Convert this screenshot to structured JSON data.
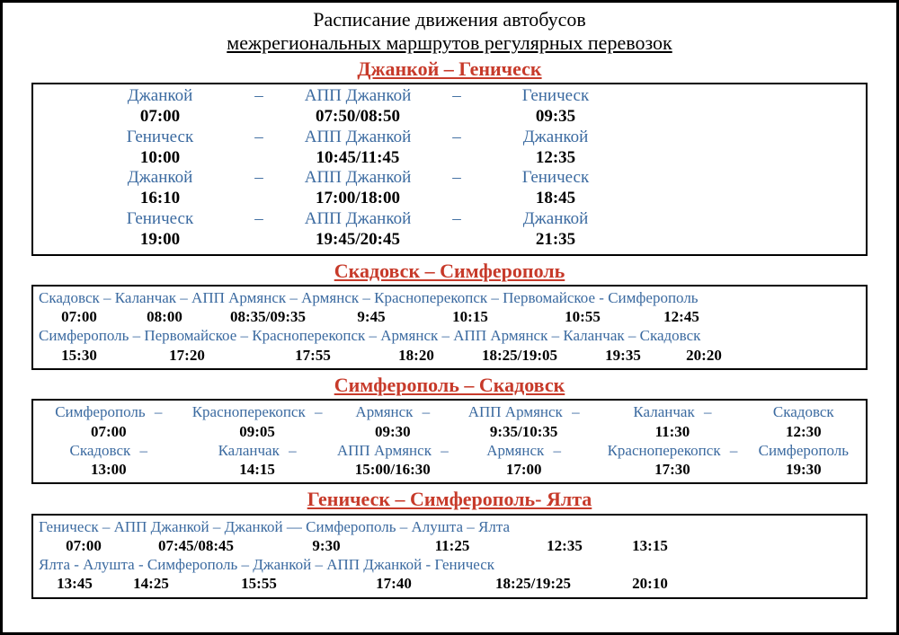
{
  "colors": {
    "route_color": "#c73a2a",
    "stop_color": "#3b6aa0",
    "sep_color": "#3b6aa0",
    "time_color": "#000000",
    "text_color": "#000000",
    "border_color": "#000000"
  },
  "title": "Расписание движения автобусов",
  "subtitle": "межрегиональных  маршрутов регулярных перевозок",
  "sections": [
    {
      "heading": "Джанкой – Геническ",
      "kind": "three-stop",
      "trips": [
        {
          "stops": [
            "Джанкой",
            "АПП Джанкой",
            "Геническ"
          ],
          "times": [
            "07:00",
            "07:50/08:50",
            "09:35"
          ]
        },
        {
          "stops": [
            "Геническ",
            "АПП Джанкой",
            "Джанкой"
          ],
          "times": [
            "10:00",
            "10:45/11:45",
            "12:35"
          ]
        },
        {
          "stops": [
            "Джанкой",
            "АПП Джанкой",
            "Геническ"
          ],
          "times": [
            "16:10",
            "17:00/18:00",
            "18:45"
          ]
        },
        {
          "stops": [
            "Геническ",
            "АПП Джанкой",
            "Джанкой"
          ],
          "times": [
            "19:00",
            "19:45/20:45",
            "21:35"
          ]
        }
      ]
    },
    {
      "heading": "Скадовск – Симферополь",
      "kind": "small",
      "lines": [
        {
          "stops": "Скадовск – Каланчак – АПП Армянск – Армянск – Красноперекопск – Первомайское - Симферополь",
          "times": [
            "07:00",
            "08:00",
            "08:35/09:35",
            "9:45",
            "10:15",
            "10:55",
            "12:45"
          ],
          "widths": [
            90,
            100,
            130,
            100,
            120,
            130,
            90
          ]
        },
        {
          "stops": "Симферополь – Первомайское – Красноперекопск – Армянск – АПП Армянск – Каланчак – Скадовск",
          "times": [
            "15:30",
            "17:20",
            "17:55",
            "18:20",
            "18:25/19:05",
            "19:35",
            "20:20"
          ],
          "widths": [
            90,
            150,
            130,
            100,
            130,
            100,
            80
          ]
        }
      ]
    },
    {
      "heading": "Симферополь – Скадовск",
      "kind": "six-stop",
      "trips": [
        {
          "stops": [
            "Симферополь",
            "Красноперекопск",
            "Армянск",
            "АПП Армянск",
            "Каланчак",
            "Скадовск"
          ],
          "times": [
            "07:00",
            "09:05",
            "09:30",
            "9:35/10:35",
            "11:30",
            "12:30"
          ]
        },
        {
          "stops": [
            "Скадовск",
            "Каланчак",
            "АПП Армянск",
            "Армянск",
            "Красноперекопск",
            "Симферополь"
          ],
          "times": [
            "13:00",
            "14:15",
            "15:00/16:30",
            "17:00",
            "17:30",
            "19:30"
          ]
        }
      ]
    },
    {
      "heading": "Геническ – Симферополь- Ялта",
      "kind": "small",
      "lines": [
        {
          "stops": "Геническ –   АПП Джанкой    – Джанкой  — Симферополь – Алушта – Ялта",
          "times": [
            "07:00",
            "07:45/08:45",
            "9:30",
            "11:25",
            "12:35",
            "13:15"
          ],
          "widths": [
            100,
            150,
            140,
            140,
            110,
            80
          ]
        },
        {
          "stops": "Ялта    - Алушта  - Симферополь –  Джанкой  – АПП Джанкой    - Геническ",
          "times": [
            "13:45",
            "14:25",
            "15:55",
            "17:40",
            "18:25/19:25",
            "20:10"
          ],
          "widths": [
            80,
            90,
            150,
            150,
            160,
            100
          ]
        }
      ]
    }
  ]
}
